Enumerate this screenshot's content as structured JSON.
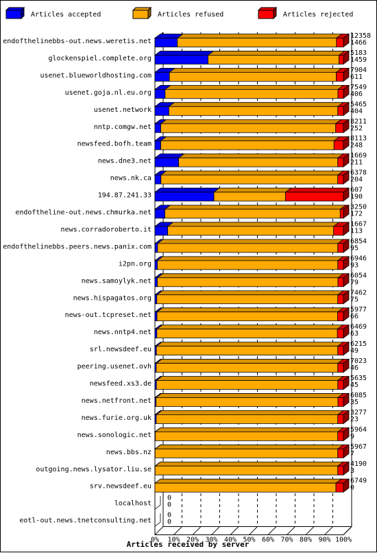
{
  "chart_data": {
    "type": "bar",
    "orientation": "horizontal",
    "stacked": "percent",
    "xlabel": "Articles received by server",
    "xlim": [
      0,
      100
    ],
    "x_ticks": [
      "0%",
      "10%",
      "20%",
      "30%",
      "40%",
      "50%",
      "60%",
      "70%",
      "80%",
      "90%",
      "100%"
    ],
    "grid": "vertical dashed",
    "legend_position": "top",
    "legend": [
      {
        "name": "Articles accepted",
        "color": "#0000ff"
      },
      {
        "name": "Articles refused",
        "color": "#ffaa00"
      },
      {
        "name": "Articles rejected",
        "color": "#ff0000"
      }
    ],
    "categories": [
      "endofthelinebbs-out.news.weretis.net",
      "glockenspiel.complete.org",
      "usenet.blueworldhosting.com",
      "usenet.goja.nl.eu.org",
      "usenet.network",
      "nntp.comgw.net",
      "newsfeed.bofh.team",
      "news.dne3.net",
      "news.nk.ca",
      "194.87.241.33",
      "endoftheline-out.news.chmurka.net",
      "news.corradoroberto.it",
      "endofthelinebbs.peers.news.panix.com",
      "i2pn.org",
      "news.samoylyk.net",
      "news.hispagatos.org",
      "news-out.tcpreset.net",
      "news.nntp4.net",
      "srl.newsdeef.eu",
      "peering.usenet.ovh",
      "newsfeed.xs3.de",
      "news.netfront.net",
      "news.furie.org.uk",
      "news.sonologic.net",
      "news.bbs.nz",
      "outgoing.news.lysator.liu.se",
      "srv.newsdeef.eu",
      "localhost",
      "eotl-out.news.tnetconsulting.net"
    ],
    "offered_labels": [
      "12358",
      "5183",
      "7904",
      "7549",
      "5465",
      "8211",
      "8113",
      "1669",
      "6378",
      "607",
      "3250",
      "1667",
      "6854",
      "6946",
      "6054",
      "7462",
      "5977",
      "6469",
      "6215",
      "7023",
      "5635",
      "6085",
      "3277",
      "5964",
      "5967",
      "4190",
      "6749",
      "0",
      "0"
    ],
    "accepted_labels": [
      "1466",
      "1459",
      "611",
      "406",
      "404",
      "252",
      "248",
      "211",
      "204",
      "190",
      "172",
      "113",
      "95",
      "93",
      "79",
      "75",
      "66",
      "63",
      "49",
      "46",
      "45",
      "35",
      "23",
      "9",
      "7",
      "3",
      "0",
      "0",
      "0"
    ],
    "series": [
      {
        "name": "Articles accepted",
        "values": [
          11.9,
          28.2,
          7.7,
          5.4,
          7.4,
          3.1,
          3.1,
          12.6,
          3.2,
          31.3,
          5.3,
          6.8,
          1.4,
          1.3,
          1.3,
          1.0,
          1.1,
          1.0,
          0.8,
          0.7,
          0.8,
          0.6,
          0.7,
          0.2,
          0.1,
          0.1,
          0,
          0,
          0
        ]
      },
      {
        "name": "Articles refused",
        "values": [
          84.4,
          69.5,
          88.5,
          91.7,
          89.6,
          92.8,
          91.9,
          84.4,
          93.8,
          38.0,
          93.0,
          88.0,
          95.6,
          95.7,
          95.8,
          96.0,
          95.8,
          95.8,
          96.2,
          96.3,
          96.2,
          96.5,
          96.3,
          96.8,
          96.9,
          96.9,
          96.0,
          0,
          0
        ]
      },
      {
        "name": "Articles rejected",
        "values": [
          3.7,
          2.3,
          3.8,
          2.9,
          3.0,
          4.1,
          5.0,
          3.0,
          3.0,
          30.7,
          1.7,
          5.2,
          3.0,
          3.0,
          2.9,
          3.0,
          3.1,
          3.2,
          3.0,
          3.0,
          3.0,
          2.9,
          3.0,
          3.0,
          3.0,
          3.0,
          4.0,
          0,
          0
        ]
      }
    ]
  }
}
